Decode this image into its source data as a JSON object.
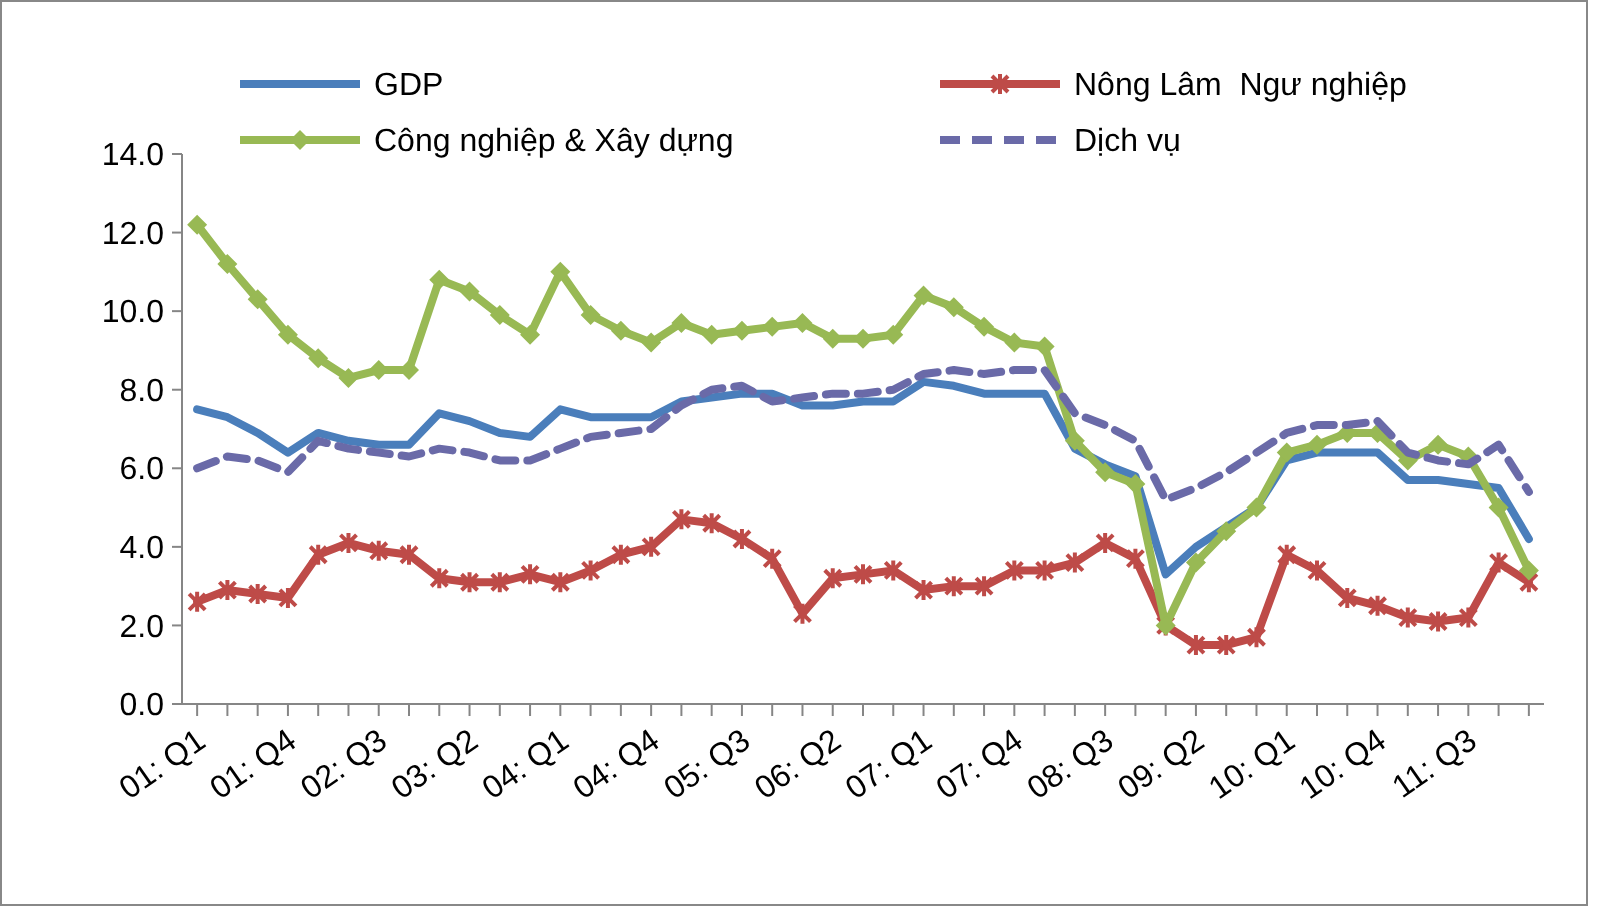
{
  "chart_data": {
    "type": "line",
    "categories": [
      "01: Q1",
      null,
      null,
      "01: Q4",
      null,
      null,
      "02: Q3",
      null,
      null,
      "03: Q2",
      null,
      null,
      "04: Q1",
      null,
      null,
      "04: Q4",
      null,
      null,
      "05: Q3",
      null,
      null,
      "06: Q2",
      null,
      null,
      "07: Q1",
      null,
      null,
      "07: Q4",
      null,
      null,
      "08: Q3",
      null,
      null,
      "09: Q2",
      null,
      null,
      "10: Q1",
      null,
      null,
      "10: Q4",
      null,
      null,
      "11: Q3",
      null,
      null
    ],
    "series": [
      {
        "name": "GDP",
        "color": "#4a7ebb",
        "marker": "none",
        "line_style": "solid",
        "values": [
          7.5,
          7.3,
          6.9,
          6.4,
          6.9,
          6.7,
          6.6,
          6.6,
          7.4,
          7.2,
          6.9,
          6.8,
          7.5,
          7.3,
          7.3,
          7.3,
          7.7,
          7.8,
          7.9,
          7.9,
          7.6,
          7.6,
          7.7,
          7.7,
          8.2,
          8.1,
          7.9,
          7.9,
          7.9,
          6.5,
          6.1,
          5.8,
          3.3,
          4.0,
          4.5,
          5.0,
          6.2,
          6.4,
          6.4,
          6.4,
          5.7,
          5.7,
          5.6,
          5.5,
          4.2
        ]
      },
      {
        "name": "Nông Lâm  Ngư nghiệp",
        "color": "#be4b48",
        "marker": "cross",
        "line_style": "solid",
        "values": [
          2.6,
          2.9,
          2.8,
          2.7,
          3.8,
          4.1,
          3.9,
          3.8,
          3.2,
          3.1,
          3.1,
          3.3,
          3.1,
          3.4,
          3.8,
          4.0,
          4.7,
          4.6,
          4.2,
          3.7,
          2.3,
          3.2,
          3.3,
          3.4,
          2.9,
          3.0,
          3.0,
          3.4,
          3.4,
          3.6,
          4.1,
          3.7,
          2.0,
          1.5,
          1.5,
          1.7,
          3.8,
          3.4,
          2.7,
          2.5,
          2.2,
          2.1,
          2.2,
          3.6,
          3.1
        ]
      },
      {
        "name": "Công nghiệp & Xây dựng",
        "color": "#98b954",
        "marker": "diamond",
        "line_style": "solid",
        "values": [
          12.2,
          11.2,
          10.3,
          9.4,
          8.8,
          8.3,
          8.5,
          8.5,
          10.8,
          10.5,
          9.9,
          9.4,
          11.0,
          9.9,
          9.5,
          9.2,
          9.7,
          9.4,
          9.5,
          9.6,
          9.7,
          9.3,
          9.3,
          9.4,
          10.4,
          10.1,
          9.6,
          9.2,
          9.1,
          6.7,
          5.9,
          5.6,
          2.0,
          3.6,
          4.4,
          5.0,
          6.4,
          6.6,
          6.9,
          6.9,
          6.2,
          6.6,
          6.3,
          5.0,
          3.4
        ]
      },
      {
        "name": "Dịch vụ",
        "color": "#6a6aa8",
        "marker": "none",
        "line_style": "dashed",
        "values": [
          6.0,
          6.3,
          6.2,
          5.9,
          6.7,
          6.5,
          6.4,
          6.3,
          6.5,
          6.4,
          6.2,
          6.2,
          6.5,
          6.8,
          6.9,
          7.0,
          7.6,
          8.0,
          8.1,
          7.7,
          7.8,
          7.9,
          7.9,
          8.0,
          8.4,
          8.5,
          8.4,
          8.5,
          8.5,
          7.4,
          7.1,
          6.7,
          5.2,
          5.5,
          5.9,
          6.4,
          6.9,
          7.1,
          7.1,
          7.2,
          6.4,
          6.2,
          6.1,
          6.6,
          5.4
        ]
      }
    ],
    "ylim": [
      0,
      14
    ],
    "yticks": [
      {
        "value": 0,
        "label": "0.0"
      },
      {
        "value": 2,
        "label": "2.0"
      },
      {
        "value": 4,
        "label": "4.0"
      },
      {
        "value": 6,
        "label": "6.0"
      },
      {
        "value": 8,
        "label": "8.0"
      },
      {
        "value": 10,
        "label": "10.0"
      },
      {
        "value": 12,
        "label": "12.0"
      },
      {
        "value": 14,
        "label": "14.0"
      }
    ],
    "grid": false,
    "legend": "top"
  }
}
